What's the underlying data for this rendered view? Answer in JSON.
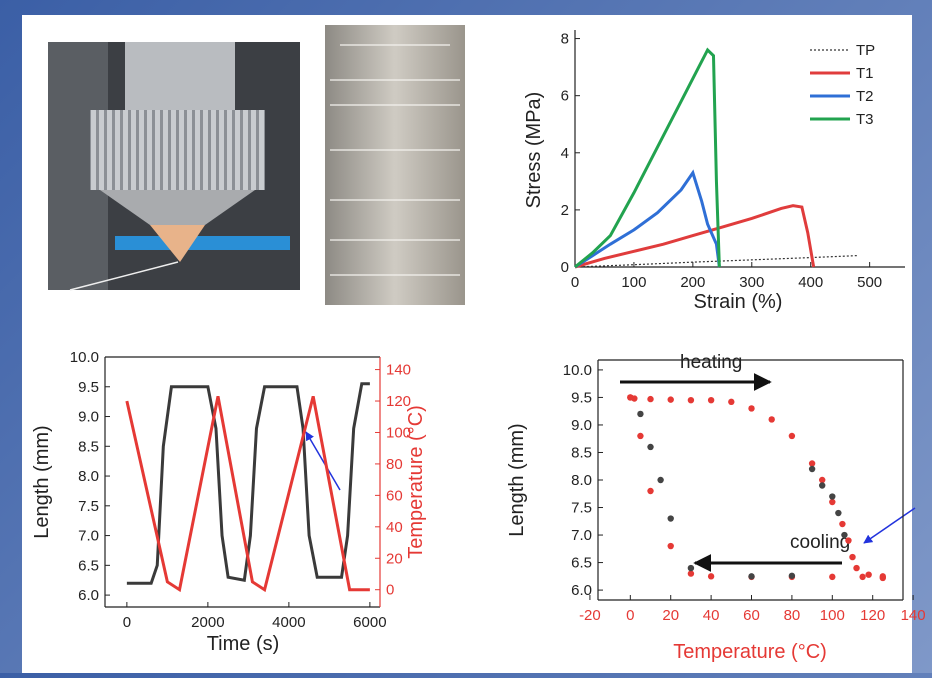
{
  "chart_data": [
    {
      "type": "line",
      "xlabel": "Strain (%)",
      "ylabel": "Stress (MPa)",
      "xlim": [
        0,
        560
      ],
      "xticks": [
        0,
        100,
        200,
        300,
        400,
        500
      ],
      "ylim": [
        0,
        8.3
      ],
      "yticks": [
        0,
        2,
        4,
        6,
        8
      ],
      "legend": "upper right",
      "series": [
        {
          "name": "TP",
          "color": "#333333",
          "linestyle": "dotted",
          "x": [
            0,
            100,
            200,
            300,
            400,
            480
          ],
          "values": [
            0,
            0.08,
            0.17,
            0.25,
            0.33,
            0.4
          ]
        },
        {
          "name": "T1",
          "color": "#e03c3c",
          "x": [
            0,
            50,
            100,
            150,
            200,
            250,
            300,
            350,
            370,
            385,
            395,
            405
          ],
          "values": [
            0,
            0.3,
            0.55,
            0.8,
            1.1,
            1.4,
            1.7,
            2.05,
            2.15,
            2.1,
            1.2,
            0
          ]
        },
        {
          "name": "T2",
          "color": "#2f6fd6",
          "x": [
            0,
            30,
            60,
            100,
            140,
            180,
            200,
            215,
            225,
            240,
            245
          ],
          "values": [
            0,
            0.4,
            0.8,
            1.3,
            1.9,
            2.7,
            3.3,
            2.3,
            1.5,
            0.8,
            0
          ]
        },
        {
          "name": "T3",
          "color": "#22a34f",
          "x": [
            0,
            30,
            60,
            100,
            140,
            180,
            210,
            225,
            235,
            240,
            245
          ],
          "values": [
            0,
            0.5,
            1.1,
            2.6,
            4.2,
            5.8,
            7.0,
            7.6,
            7.4,
            3,
            0
          ]
        }
      ]
    },
    {
      "type": "line",
      "xlabel": "Time (s)",
      "ylabel": "Length (mm)",
      "y2label": "Temperature (°C)",
      "y2color": "#e53935",
      "xlim": [
        -540,
        6250
      ],
      "xticks": [
        0,
        2000,
        4000,
        6000
      ],
      "ylim": [
        5.8,
        10.0
      ],
      "yticks": [
        {
          "value": 6,
          "label": "6.0"
        },
        6.5,
        {
          "value": 7,
          "label": "7.0"
        },
        7.5,
        {
          "value": 8,
          "label": "8.0"
        },
        8.5,
        {
          "value": 9,
          "label": "9.0"
        },
        9.5,
        {
          "value": 10,
          "label": "10.0"
        }
      ],
      "y2lim": [
        -11,
        148
      ],
      "y2ticks": [
        0,
        20,
        40,
        60,
        80,
        100,
        120,
        140
      ],
      "series": [
        {
          "color": "#3a3a3a",
          "x": [
            0,
            600,
            750,
            900,
            1100,
            2000,
            2200,
            2350,
            2500,
            2900,
            3050,
            3200,
            3400,
            4200,
            4350,
            4500,
            4700,
            5300,
            5450,
            5600,
            5800,
            6000
          ],
          "values": [
            6.2,
            6.2,
            6.5,
            8.5,
            9.5,
            9.5,
            8.8,
            7.0,
            6.3,
            6.25,
            7.0,
            8.8,
            9.5,
            9.5,
            8.8,
            7.0,
            6.3,
            6.3,
            7.0,
            8.8,
            9.55,
            9.55
          ]
        },
        {
          "color": "#e53935",
          "axis": "y2",
          "x": [
            0,
            1000,
            1300,
            2250,
            3100,
            3400,
            4600,
            5500,
            6000
          ],
          "values": [
            120,
            5,
            0,
            123,
            5,
            0,
            123,
            0,
            0
          ]
        }
      ]
    },
    {
      "type": "scatter",
      "xlabel": "Temperature (°C)",
      "ylabel": "Length (mm)",
      "xcolor": "#e53935",
      "xlim": [
        -16,
        135
      ],
      "xticks": [
        -20,
        0,
        20,
        40,
        60,
        80,
        100,
        120,
        140
      ],
      "ylim": [
        5.82,
        10.18
      ],
      "yticks": [
        {
          "value": 6,
          "label": "6.0"
        },
        6.5,
        {
          "value": 7,
          "label": "7.0"
        },
        7.5,
        {
          "value": 8,
          "label": "8.0"
        },
        8.5,
        {
          "value": 9,
          "label": "9.0"
        },
        9.5,
        {
          "value": 10,
          "label": "10.0"
        }
      ],
      "annotations": [
        "heating",
        "cooling"
      ],
      "series": [
        {
          "color": "#e53935",
          "x": [
            0,
            2,
            10,
            20,
            30,
            40,
            50,
            60,
            70,
            80,
            90,
            95,
            100,
            105,
            108,
            110,
            112,
            118,
            125,
            125,
            115,
            100,
            80,
            60,
            40,
            30,
            20,
            10,
            5,
            0
          ],
          "values": [
            9.5,
            9.48,
            9.47,
            9.46,
            9.45,
            9.45,
            9.42,
            9.3,
            9.1,
            8.8,
            8.3,
            8.0,
            7.6,
            7.2,
            6.9,
            6.6,
            6.4,
            6.28,
            6.25,
            6.22,
            6.24,
            6.24,
            6.24,
            6.24,
            6.25,
            6.3,
            6.8,
            7.8,
            8.8,
            9.5
          ]
        },
        {
          "color": "#444444",
          "x": [
            5,
            10,
            15,
            20,
            30,
            60,
            80,
            90,
            95,
            100,
            103,
            106
          ],
          "values": [
            9.2,
            8.6,
            8.0,
            7.3,
            6.4,
            6.25,
            6.26,
            8.2,
            7.9,
            7.7,
            7.4,
            7.0
          ]
        }
      ]
    }
  ]
}
